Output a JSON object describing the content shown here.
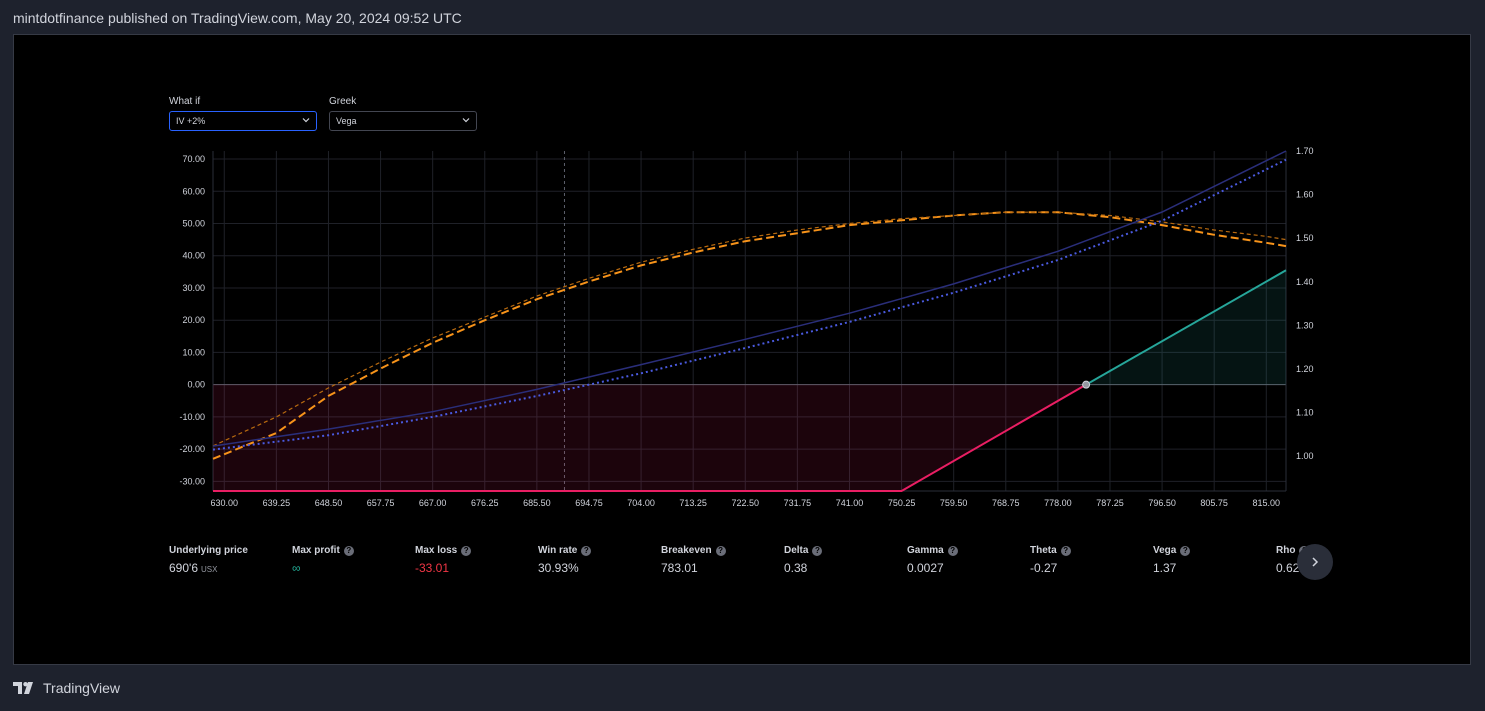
{
  "header": {
    "text": "mintdotfinance published on TradingView.com, May 20, 2024 09:52 UTC"
  },
  "controls": {
    "what_if": {
      "label": "What if",
      "value": "IV +2%"
    },
    "greek": {
      "label": "Greek",
      "value": "Vega"
    }
  },
  "chart_data": {
    "type": "line",
    "title": "",
    "xlabel": "",
    "ylabel": "",
    "x_ticks": [
      "630.00",
      "639.25",
      "648.50",
      "657.75",
      "667.00",
      "676.25",
      "685.50",
      "694.75",
      "704.00",
      "713.25",
      "722.50",
      "731.75",
      "741.00",
      "750.25",
      "759.50",
      "768.75",
      "778.00",
      "787.25",
      "796.50",
      "805.75",
      "815.00"
    ],
    "y_left_ticks": [
      "70.00",
      "60.00",
      "50.00",
      "40.00",
      "30.00",
      "20.00",
      "10.00",
      "0.00",
      "-10.00",
      "-20.00",
      "-30.00"
    ],
    "y_right_ticks": [
      "1.70",
      "1.60",
      "1.50",
      "1.40",
      "1.30",
      "1.20",
      "1.10",
      "1.00"
    ],
    "xlim": [
      628,
      818.5
    ],
    "ylim_left": [
      -33,
      72.5
    ],
    "ylim_right": [
      0.92,
      1.7
    ],
    "underlying_price": 690.4,
    "breakeven": 783.01,
    "grid": true,
    "series": [
      {
        "axis": "left",
        "style": "payoff-expiration",
        "color_neg": "#e91e63",
        "color_pos": "#26a69a",
        "points": [
          [
            628,
            -33.01
          ],
          [
            750.25,
            -33.01
          ],
          [
            783.01,
            0
          ],
          [
            818.5,
            35.49
          ]
        ]
      },
      {
        "axis": "left",
        "style": "dashed",
        "color": "#f7931a",
        "points": [
          [
            628,
            -23
          ],
          [
            639.25,
            -15
          ],
          [
            648.5,
            -3.5
          ],
          [
            657.75,
            5
          ],
          [
            667,
            13
          ],
          [
            676.25,
            20
          ],
          [
            685.5,
            26.5
          ],
          [
            694.75,
            32
          ],
          [
            704,
            37
          ],
          [
            713.25,
            41
          ],
          [
            722.5,
            44.5
          ],
          [
            731.75,
            47
          ],
          [
            741,
            49.5
          ],
          [
            750.25,
            51
          ],
          [
            759.5,
            52.5
          ],
          [
            768.75,
            53.5
          ],
          [
            778,
            53.5
          ],
          [
            787.25,
            52
          ],
          [
            796.5,
            49.5
          ],
          [
            805.75,
            46.5
          ],
          [
            815,
            44
          ],
          [
            818.5,
            43
          ]
        ]
      },
      {
        "axis": "left",
        "style": "dashed-thin",
        "color": "#b86a10",
        "points": [
          [
            628,
            -19
          ],
          [
            639.25,
            -10
          ],
          [
            648.5,
            -1
          ],
          [
            657.75,
            7
          ],
          [
            667,
            14.5
          ],
          [
            676.25,
            21
          ],
          [
            685.5,
            27.5
          ],
          [
            694.75,
            33
          ],
          [
            704,
            38
          ],
          [
            713.25,
            42
          ],
          [
            722.5,
            45.5
          ],
          [
            731.75,
            48
          ],
          [
            741,
            50
          ],
          [
            750.25,
            51.5
          ],
          [
            759.5,
            52.5
          ],
          [
            768.75,
            53.5
          ],
          [
            778,
            53.5
          ],
          [
            787.25,
            52.5
          ],
          [
            796.5,
            50.5
          ],
          [
            805.75,
            48
          ],
          [
            815,
            46
          ],
          [
            818.5,
            45
          ]
        ]
      },
      {
        "axis": "right",
        "style": "solid-thin",
        "color": "#2a2e7a",
        "points": [
          [
            628,
            1.023
          ],
          [
            648.5,
            1.062
          ],
          [
            667,
            1.102
          ],
          [
            685.5,
            1.153
          ],
          [
            704,
            1.21
          ],
          [
            722.5,
            1.268
          ],
          [
            741,
            1.328
          ],
          [
            759.5,
            1.395
          ],
          [
            778,
            1.47
          ],
          [
            796.5,
            1.56
          ],
          [
            818.5,
            1.7
          ]
        ]
      },
      {
        "axis": "right",
        "style": "dotted",
        "color": "#4a5ae0",
        "points": [
          [
            628,
            1.015
          ],
          [
            648.5,
            1.048
          ],
          [
            667,
            1.09
          ],
          [
            685.5,
            1.138
          ],
          [
            704,
            1.19
          ],
          [
            722.5,
            1.248
          ],
          [
            741,
            1.308
          ],
          [
            759.5,
            1.375
          ],
          [
            778,
            1.45
          ],
          [
            796.5,
            1.54
          ],
          [
            818.5,
            1.68
          ]
        ]
      }
    ]
  },
  "stats": [
    {
      "label": "Underlying price",
      "value": "690'6",
      "unit": "USX",
      "style": "normal",
      "info": false
    },
    {
      "label": "Max profit",
      "value": "∞",
      "style": "teal",
      "info": true
    },
    {
      "label": "Max loss",
      "value": "-33.01",
      "style": "neg",
      "info": true
    },
    {
      "label": "Win rate",
      "value": "30.93%",
      "style": "normal",
      "info": true
    },
    {
      "label": "Breakeven",
      "value": "783.01",
      "style": "normal",
      "info": true
    },
    {
      "label": "Delta",
      "value": "0.38",
      "style": "normal",
      "info": true
    },
    {
      "label": "Gamma",
      "value": "0.0027",
      "style": "normal",
      "info": true
    },
    {
      "label": "Theta",
      "value": "-0.27",
      "style": "normal",
      "info": true
    },
    {
      "label": "Vega",
      "value": "1.37",
      "style": "normal",
      "info": true
    },
    {
      "label": "Rho",
      "value": "0.62",
      "style": "normal",
      "info": true
    }
  ],
  "footer": {
    "brand": "TradingView"
  },
  "colors": {
    "accent": "#2962ff",
    "loss": "#f23645",
    "profit": "#22ab94"
  }
}
